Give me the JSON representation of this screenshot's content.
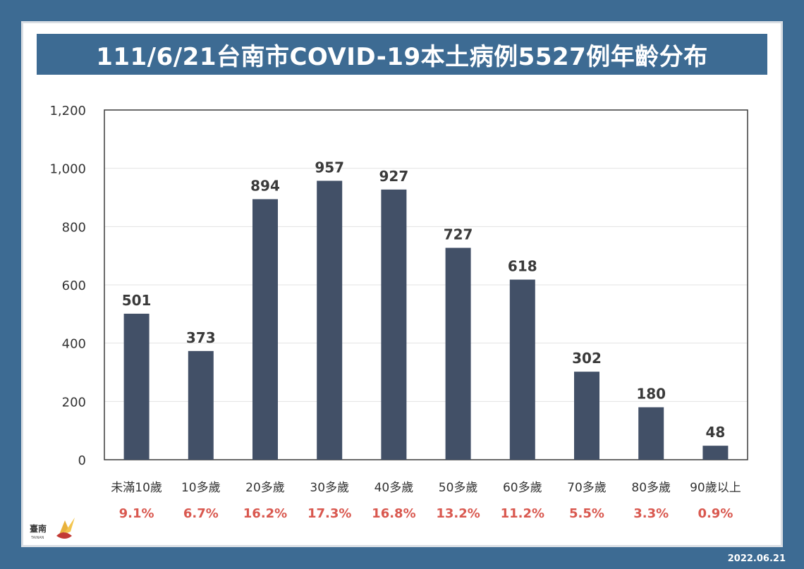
{
  "title": "111/6/21台南市COVID-19本土病例5527例年齡分布",
  "date_stamp": "2022.06.21",
  "logo_text": "臺南",
  "colors": {
    "bar": "#425067",
    "frame_bg": "#3d6b93",
    "percent": "#d9584f",
    "label": "#333333"
  },
  "chart_data": {
    "type": "bar",
    "categories": [
      "未滿10歲",
      "10多歲",
      "20多歲",
      "30多歲",
      "40多歲",
      "50多歲",
      "60多歲",
      "70多歲",
      "80多歲",
      "90歲以上"
    ],
    "values": [
      501,
      373,
      894,
      957,
      927,
      727,
      618,
      302,
      180,
      48
    ],
    "percentages": [
      "9.1%",
      "6.7%",
      "16.2%",
      "17.3%",
      "16.8%",
      "13.2%",
      "11.2%",
      "5.5%",
      "3.3%",
      "0.9%"
    ],
    "ylim": [
      0,
      1200
    ],
    "yticks": [
      0,
      200,
      400,
      600,
      800,
      1000,
      1200
    ],
    "ytick_labels": [
      "0",
      "200",
      "400",
      "600",
      "800",
      "1,000",
      "1,200"
    ],
    "grid": true,
    "title": "",
    "xlabel": "",
    "ylabel": ""
  }
}
